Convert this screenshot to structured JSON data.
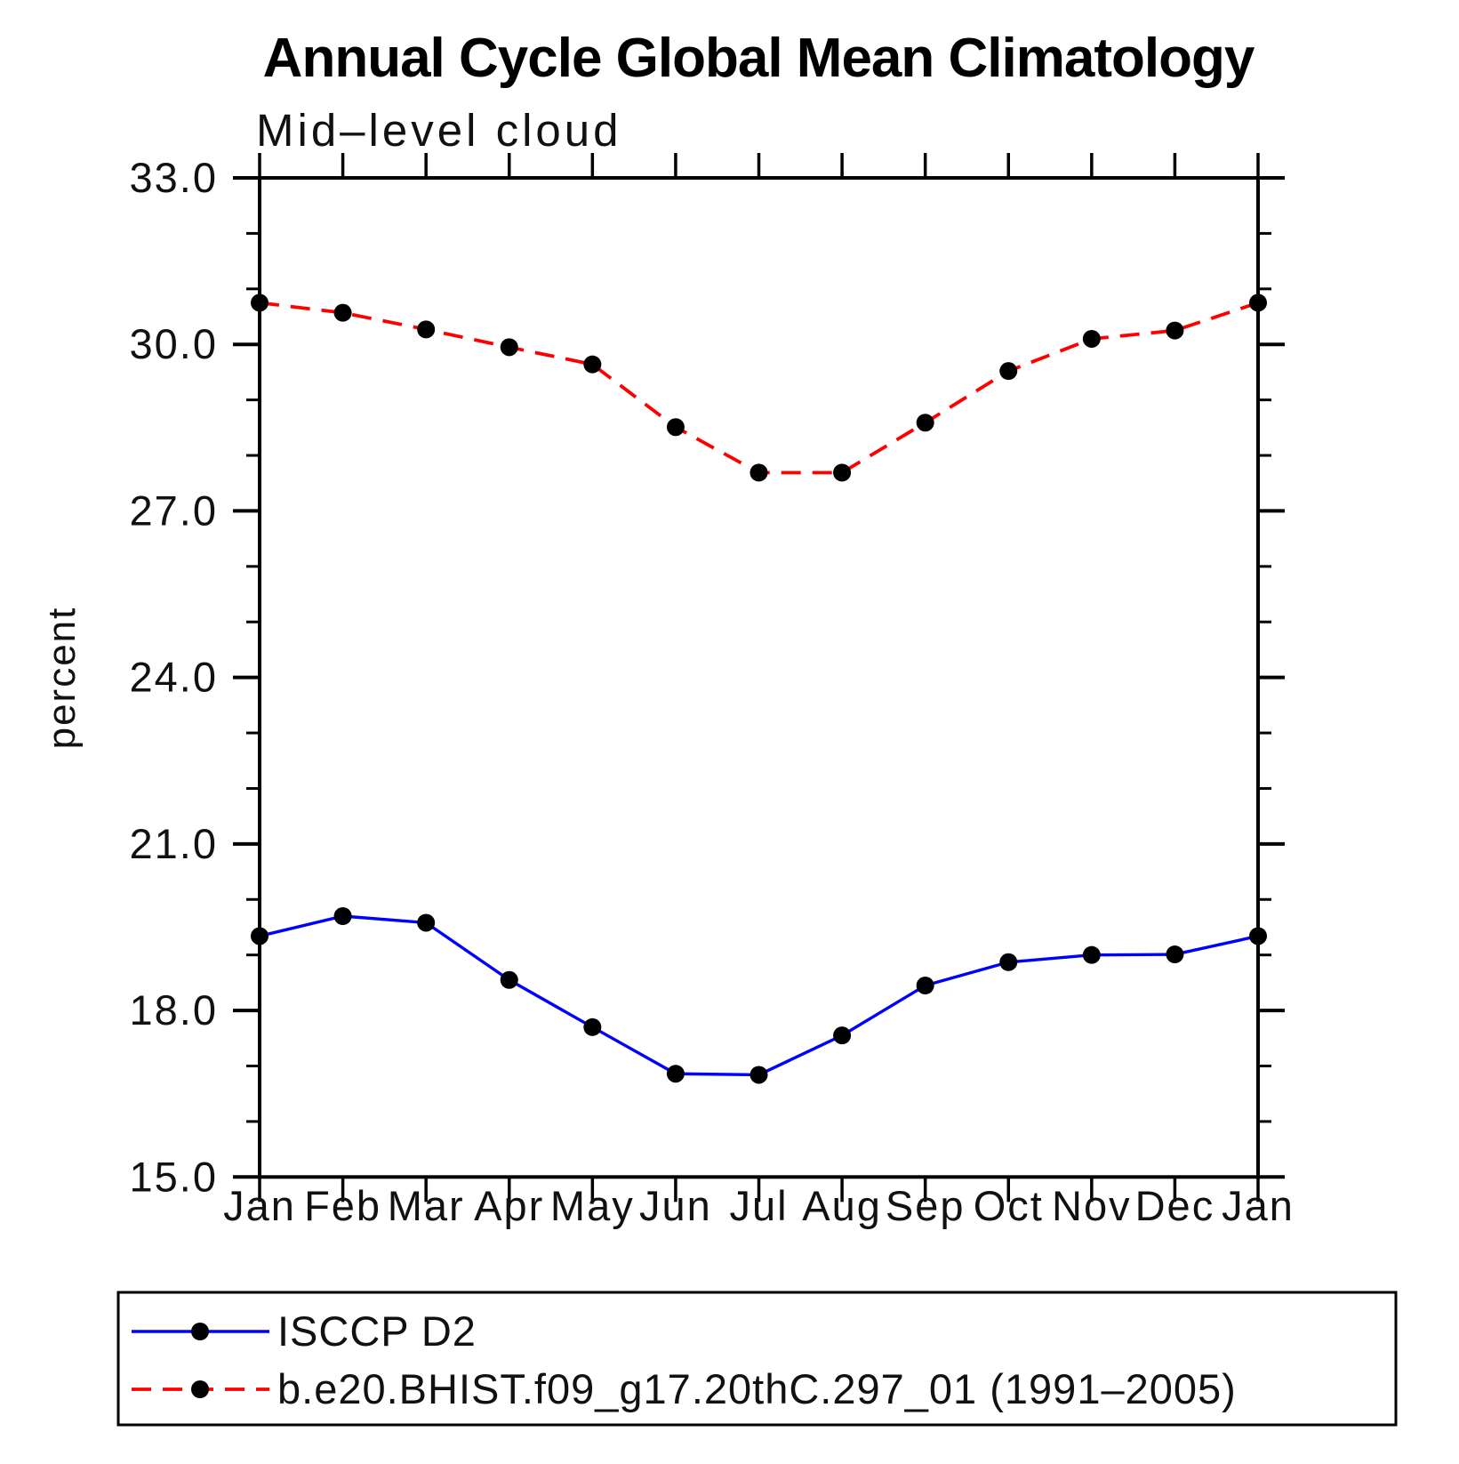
{
  "chart_data": {
    "type": "line",
    "title": "Annual Cycle Global Mean Climatology",
    "subtitle": "Mid–level cloud",
    "ylabel": "percent",
    "categories": [
      "Jan",
      "Feb",
      "Mar",
      "Apr",
      "May",
      "Jun",
      "Jul",
      "Aug",
      "Sep",
      "Oct",
      "Nov",
      "Dec",
      "Jan"
    ],
    "ylim": [
      15.0,
      33.0
    ],
    "ytick_values": [
      15,
      18,
      21,
      24,
      27,
      30,
      33
    ],
    "ytick_labels": [
      "15.0",
      "18.0",
      "21.0",
      "24.0",
      "27.0",
      "30.0",
      "33.0"
    ],
    "minor_tick_step": 1.0,
    "grid": false,
    "legend_position": "bottom-left-box",
    "axis_color": "#000000",
    "marker_color": "#000000",
    "series": [
      {
        "name": "ISCCP D2",
        "color": "#0000ff",
        "style": "solid",
        "marker": "filled-circle",
        "values": [
          19.34,
          19.7,
          19.58,
          18.55,
          17.7,
          16.86,
          16.84,
          17.55,
          18.45,
          18.87,
          19.0,
          19.01,
          19.34
        ]
      },
      {
        "name": "b.e20.BHIST.f09_g17.20thC.297_01 (1991–2005)",
        "color": "#ff0000",
        "style": "dashed",
        "marker": "filled-circle",
        "values": [
          30.75,
          30.57,
          30.27,
          29.95,
          29.64,
          28.51,
          27.69,
          27.69,
          28.59,
          29.52,
          30.1,
          30.25,
          30.75
        ]
      }
    ]
  }
}
